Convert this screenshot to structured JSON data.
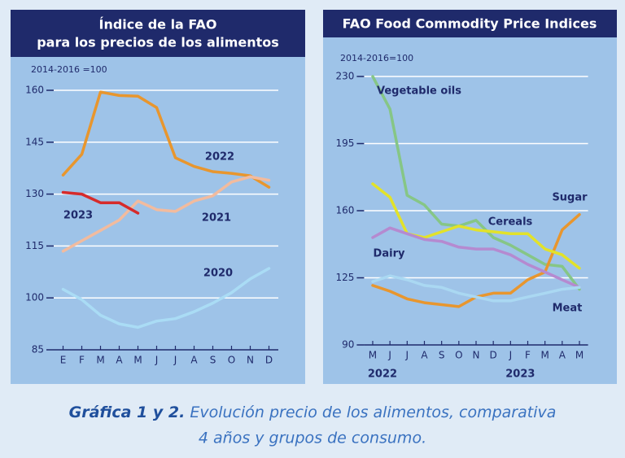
{
  "chart_data": [
    {
      "type": "line",
      "title": [
        "Índice de la FAO",
        "para los precios de los alimentos"
      ],
      "unit_label": "2014-2016 =100",
      "categories": [
        "E",
        "F",
        "M",
        "A",
        "M",
        "J",
        "J",
        "A",
        "S",
        "O",
        "N",
        "D"
      ],
      "ylim": [
        85,
        164
      ],
      "yticks": [
        85,
        100,
        115,
        130,
        145,
        160
      ],
      "grid": true,
      "series": [
        {
          "name": "2022",
          "color": "#e8962e",
          "values": [
            135.5,
            141.5,
            159.5,
            158.5,
            158.3,
            155,
            140.5,
            138,
            136.5,
            136,
            135.3,
            132
          ]
        },
        {
          "name": "2021",
          "color": "#f2bb9e",
          "values": [
            113.5,
            116.5,
            119.5,
            122.5,
            128,
            125.5,
            125,
            128,
            129.5,
            133.5,
            135,
            134
          ]
        },
        {
          "name": "2023",
          "color": "#d62b2b",
          "values": [
            130.5,
            130,
            127.5,
            127.5,
            124.5,
            null,
            null,
            null,
            null,
            null,
            null,
            null
          ]
        },
        {
          "name": "2020",
          "color": "#aadcf5",
          "values": [
            102.5,
            99.5,
            95,
            92.5,
            91.5,
            93.3,
            94,
            96,
            98.5,
            101.5,
            105.5,
            108.5
          ]
        }
      ]
    },
    {
      "type": "line",
      "title": [
        "FAO Food Commodity Price Indices"
      ],
      "unit_label": "2014-2016=100",
      "categories": [
        "M",
        "J",
        "J",
        "A",
        "S",
        "O",
        "N",
        "D",
        "J",
        "F",
        "M",
        "A",
        "M"
      ],
      "year_labels": [
        "2022",
        "2023"
      ],
      "ylim": [
        90,
        232
      ],
      "yticks": [
        90,
        125,
        160,
        195,
        230
      ],
      "grid": true,
      "series": [
        {
          "name": "Vegetable oils",
          "color": "#86c686",
          "values": [
            230,
            213,
            168,
            163,
            153,
            152,
            155,
            146,
            142,
            137,
            132,
            131,
            119
          ]
        },
        {
          "name": "Sugar",
          "color": "#e8962e",
          "values": [
            121,
            118,
            114,
            112,
            111,
            110,
            115,
            117,
            117,
            124,
            128,
            150,
            158
          ]
        },
        {
          "name": "Cereals",
          "color": "#e2e22a",
          "values": [
            174,
            167,
            148,
            146,
            149,
            152,
            150,
            149,
            148,
            148,
            140,
            137,
            130
          ]
        },
        {
          "name": "Dairy",
          "color": "#b58ad0",
          "values": [
            146,
            151,
            148,
            145,
            144,
            141,
            140,
            140,
            137,
            132,
            128,
            124,
            120
          ]
        },
        {
          "name": "Meat",
          "color": "#aad8f2",
          "values": [
            123,
            126,
            124,
            121,
            120,
            117,
            115,
            113,
            113,
            115,
            117,
            119,
            120
          ]
        }
      ]
    }
  ],
  "caption": {
    "label": "Gráfica 1 y 2.",
    "lines": [
      "Evolución precio de los alimentos, comparativa",
      "4 años y grupos de consumo."
    ]
  }
}
